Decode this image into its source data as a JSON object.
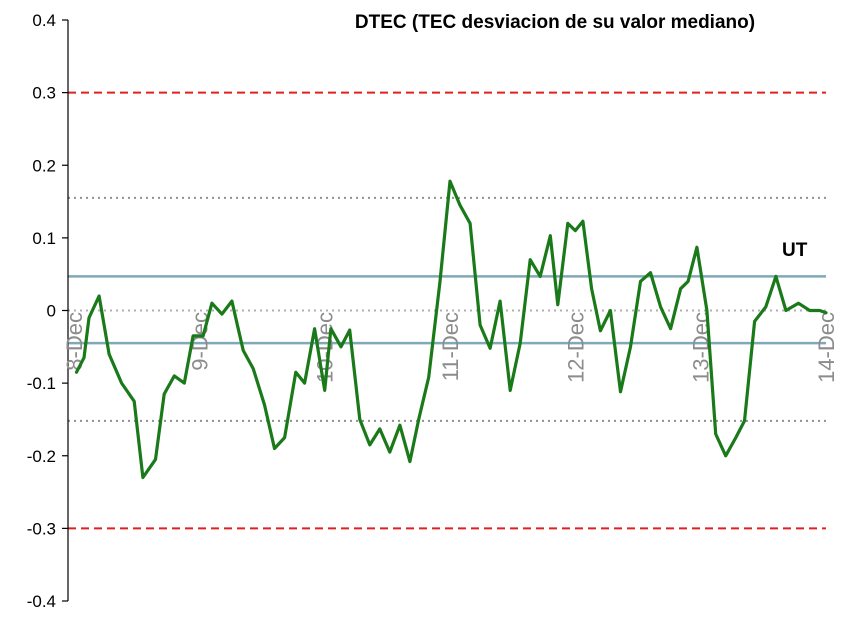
{
  "chart_data": {
    "type": "line",
    "title": "DTEC (TEC desviacion de su valor mediano)",
    "xlabel": "",
    "ylabel": "",
    "ylim": [
      -0.4,
      0.4
    ],
    "yticks": [
      {
        "value": 0.4,
        "label": "0.4"
      },
      {
        "value": 0.3,
        "label": "0.3"
      },
      {
        "value": 0.2,
        "label": "0.2"
      },
      {
        "value": 0.1,
        "label": "0.1"
      },
      {
        "value": 0,
        "label": "0"
      },
      {
        "value": -0.1,
        "label": "-0.1"
      },
      {
        "value": -0.2,
        "label": "-0.2"
      },
      {
        "value": -0.3,
        "label": "-0.3"
      },
      {
        "value": -0.4,
        "label": "-0.4"
      }
    ],
    "xlim": [
      8,
      14
    ],
    "xticks": [
      {
        "value": 8,
        "label": "8-Dec"
      },
      {
        "value": 9,
        "label": "9-Dec"
      },
      {
        "value": 10,
        "label": "10-Dec"
      },
      {
        "value": 11,
        "label": "11-Dec"
      },
      {
        "value": 12,
        "label": "12-Dec"
      },
      {
        "value": 13,
        "label": "13-Dec"
      },
      {
        "value": 14,
        "label": "14-Dec"
      }
    ],
    "grid": false,
    "reference_lines": [
      {
        "y": 0.3,
        "style": "dashed",
        "color": "#e02020"
      },
      {
        "y": -0.3,
        "style": "dashed",
        "color": "#e02020"
      },
      {
        "y": 0.155,
        "style": "dotted",
        "color": "#909090"
      },
      {
        "y": -0.152,
        "style": "dotted",
        "color": "#909090"
      },
      {
        "y": 0.047,
        "style": "solid",
        "color": "#7fa8b8"
      },
      {
        "y": -0.045,
        "style": "solid",
        "color": "#7fa8b8"
      },
      {
        "y": 0,
        "style": "dotted",
        "color": "#b0b0b0"
      }
    ],
    "annotations": [
      {
        "text": "UT",
        "x": 13.75,
        "y": 0.085
      }
    ],
    "series": [
      {
        "color": "#1a7a1a",
        "x": [
          8.02,
          8.08,
          8.12,
          8.2,
          8.28,
          8.38,
          8.48,
          8.55,
          8.65,
          8.72,
          8.8,
          8.88,
          8.95,
          9.03,
          9.1,
          9.18,
          9.26,
          9.35,
          9.43,
          9.52,
          9.6,
          9.68,
          9.77,
          9.84,
          9.92,
          10.0,
          10.05,
          10.13,
          10.2,
          10.28,
          10.36,
          10.44,
          10.52,
          10.6,
          10.68,
          10.75,
          10.83,
          10.92,
          11.0,
          11.08,
          11.16,
          11.24,
          11.32,
          11.4,
          11.48,
          11.56,
          11.64,
          11.72,
          11.8,
          11.86,
          11.94,
          12.0,
          12.06,
          12.13,
          12.2,
          12.28,
          12.36,
          12.44,
          12.52,
          12.6,
          12.68,
          12.76,
          12.84,
          12.9,
          12.97,
          13.05,
          13.12,
          13.2,
          13.28,
          13.35,
          13.43,
          13.52,
          13.6,
          13.68,
          13.78,
          13.87,
          13.95,
          14.0
        ],
        "y": [
          -0.085,
          -0.065,
          -0.01,
          0.02,
          -0.06,
          -0.1,
          -0.125,
          -0.23,
          -0.205,
          -0.115,
          -0.09,
          -0.1,
          -0.035,
          -0.035,
          0.01,
          -0.005,
          0.013,
          -0.055,
          -0.08,
          -0.13,
          -0.19,
          -0.175,
          -0.085,
          -0.1,
          -0.025,
          -0.11,
          -0.025,
          -0.05,
          -0.027,
          -0.15,
          -0.185,
          -0.163,
          -0.195,
          -0.158,
          -0.208,
          -0.15,
          -0.092,
          0.04,
          0.178,
          0.145,
          0.12,
          -0.02,
          -0.052,
          0.013,
          -0.11,
          -0.045,
          0.07,
          0.047,
          0.103,
          0.008,
          0.12,
          0.11,
          0.123,
          0.03,
          -0.028,
          0.0,
          -0.112,
          -0.05,
          0.04,
          0.052,
          0.005,
          -0.025,
          0.03,
          0.04,
          0.087,
          0.0,
          -0.17,
          -0.2,
          -0.175,
          -0.152,
          -0.015,
          0.005,
          0.047,
          0.0,
          0.01,
          0.0,
          0.0,
          -0.003
        ]
      }
    ]
  }
}
